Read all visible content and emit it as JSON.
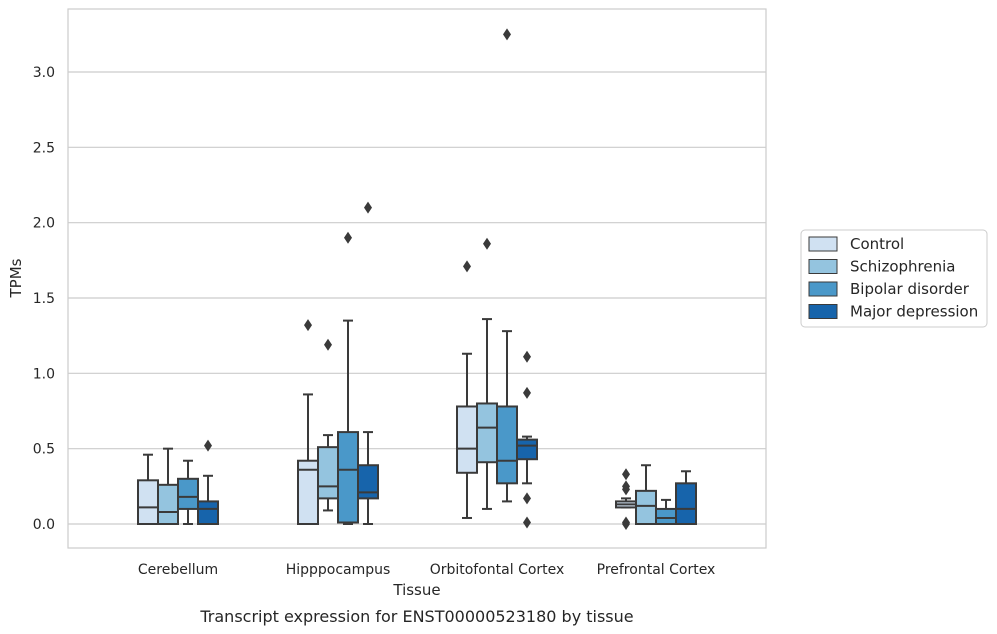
{
  "chart_data": {
    "type": "box",
    "caption": "Transcript expression for ENST00000523180 by tissue",
    "xlabel": "Tissue",
    "ylabel": "TPMs",
    "ylim": [
      -0.16,
      3.42
    ],
    "yticks": [
      0.0,
      0.5,
      1.0,
      1.5,
      2.0,
      2.5,
      3.0
    ],
    "ytick_labels": [
      "0.0",
      "0.5",
      "1.0",
      "1.5",
      "2.0",
      "2.5",
      "3.0"
    ],
    "grid": "horizontal",
    "legend_position": "right",
    "categories": [
      "Cerebellum",
      "Hipppocampus",
      "Orbitofontal Cortex",
      "Prefrontal Cortex"
    ],
    "series": [
      {
        "name": "Control",
        "color": "#d0e1f2",
        "boxes": [
          {
            "whislo": 0.0,
            "q1": 0.0,
            "med": 0.11,
            "q3": 0.29,
            "whishi": 0.46,
            "fliers": []
          },
          {
            "whislo": 0.0,
            "q1": 0.0,
            "med": 0.36,
            "q3": 0.42,
            "whishi": 0.86,
            "fliers": [
              1.32
            ]
          },
          {
            "whislo": 0.04,
            "q1": 0.34,
            "med": 0.5,
            "q3": 0.78,
            "whishi": 1.13,
            "fliers": [
              1.71
            ]
          },
          {
            "whislo": 0.11,
            "q1": 0.11,
            "med": 0.13,
            "q3": 0.15,
            "whishi": 0.17,
            "fliers": [
              0.0,
              0.01,
              0.23,
              0.25,
              0.33
            ]
          }
        ]
      },
      {
        "name": "Schizophrenia",
        "color": "#94c4df",
        "boxes": [
          {
            "whislo": 0.0,
            "q1": 0.0,
            "med": 0.08,
            "q3": 0.26,
            "whishi": 0.5,
            "fliers": []
          },
          {
            "whislo": 0.09,
            "q1": 0.17,
            "med": 0.25,
            "q3": 0.51,
            "whishi": 0.59,
            "fliers": [
              1.19
            ]
          },
          {
            "whislo": 0.1,
            "q1": 0.41,
            "med": 0.64,
            "q3": 0.8,
            "whishi": 1.36,
            "fliers": [
              1.86
            ]
          },
          {
            "whislo": 0.0,
            "q1": 0.0,
            "med": 0.12,
            "q3": 0.22,
            "whishi": 0.39,
            "fliers": []
          }
        ]
      },
      {
        "name": "Bipolar disorder",
        "color": "#4a98c9",
        "boxes": [
          {
            "whislo": 0.0,
            "q1": 0.1,
            "med": 0.18,
            "q3": 0.3,
            "whishi": 0.42,
            "fliers": []
          },
          {
            "whislo": 0.0,
            "q1": 0.01,
            "med": 0.36,
            "q3": 0.61,
            "whishi": 1.35,
            "fliers": [
              1.9
            ]
          },
          {
            "whislo": 0.15,
            "q1": 0.27,
            "med": 0.42,
            "q3": 0.78,
            "whishi": 1.28,
            "fliers": [
              3.25
            ]
          },
          {
            "whislo": 0.0,
            "q1": 0.0,
            "med": 0.04,
            "q3": 0.1,
            "whishi": 0.16,
            "fliers": []
          }
        ]
      },
      {
        "name": "Major depression",
        "color": "#1764ab",
        "boxes": [
          {
            "whislo": 0.0,
            "q1": 0.0,
            "med": 0.1,
            "q3": 0.15,
            "whishi": 0.32,
            "fliers": [
              0.52
            ]
          },
          {
            "whislo": 0.0,
            "q1": 0.17,
            "med": 0.21,
            "q3": 0.39,
            "whishi": 0.61,
            "fliers": [
              2.1
            ]
          },
          {
            "whislo": 0.27,
            "q1": 0.43,
            "med": 0.52,
            "q3": 0.56,
            "whishi": 0.58,
            "fliers": [
              0.01,
              0.17,
              0.87,
              1.11
            ]
          },
          {
            "whislo": 0.0,
            "q1": 0.0,
            "med": 0.1,
            "q3": 0.27,
            "whishi": 0.35,
            "fliers": []
          }
        ]
      }
    ]
  }
}
